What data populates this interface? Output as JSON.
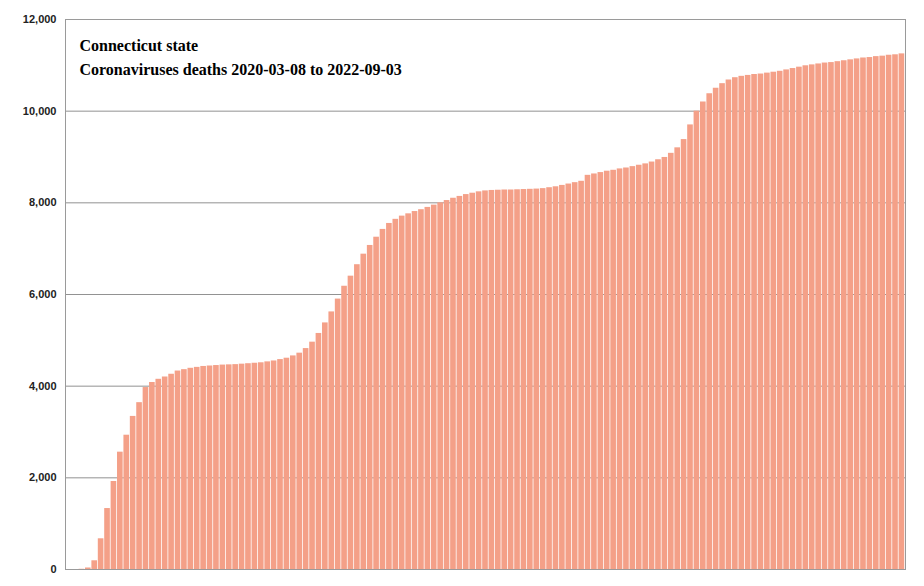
{
  "chart_data": {
    "type": "bar",
    "title": "Connecticut state",
    "subtitle": "Coronaviruses deaths 2020-03-08 to 2022-09-03",
    "categories": [
      null,
      null,
      null,
      null,
      null,
      null,
      null,
      null,
      null,
      null,
      null,
      null,
      null,
      null,
      null,
      null,
      null,
      null,
      null,
      null,
      null,
      null,
      null,
      null,
      null,
      null,
      null,
      null,
      null,
      null,
      null,
      null,
      null,
      null,
      null,
      null,
      null,
      null,
      null,
      null,
      null,
      null,
      null,
      null,
      null,
      null,
      null,
      null,
      null,
      null,
      null,
      null,
      null,
      null,
      null,
      null,
      null,
      null,
      null,
      null,
      null,
      null,
      null,
      null,
      null,
      null,
      null,
      null,
      null,
      null,
      null,
      null,
      null,
      null,
      null,
      null,
      null,
      null,
      null,
      null,
      null,
      null,
      null,
      null,
      null,
      null,
      null,
      null,
      null,
      null,
      null,
      null,
      null,
      null,
      null,
      null,
      null,
      null,
      null,
      null,
      null,
      null,
      null,
      null,
      null,
      null,
      null,
      null,
      null,
      null,
      null,
      null,
      null,
      null,
      null,
      null,
      null,
      null,
      null,
      null,
      null,
      null,
      null,
      null,
      null,
      null,
      null,
      null,
      null,
      null,
      null
    ],
    "values": [
      0,
      0,
      5,
      33,
      190,
      670,
      1330,
      1920,
      2560,
      2930,
      3340,
      3640,
      3970,
      4080,
      4150,
      4200,
      4260,
      4330,
      4360,
      4390,
      4410,
      4430,
      4440,
      4450,
      4460,
      4465,
      4470,
      4480,
      4490,
      4500,
      4510,
      4530,
      4550,
      4580,
      4610,
      4660,
      4720,
      4820,
      4960,
      5150,
      5380,
      5620,
      5900,
      6180,
      6400,
      6650,
      6880,
      7070,
      7250,
      7420,
      7550,
      7640,
      7710,
      7760,
      7810,
      7850,
      7900,
      7950,
      8000,
      8050,
      8100,
      8140,
      8180,
      8210,
      8240,
      8260,
      8270,
      8275,
      8280,
      8280,
      8285,
      8290,
      8295,
      8300,
      8310,
      8330,
      8350,
      8380,
      8410,
      8440,
      8470,
      8600,
      8630,
      8660,
      8690,
      8710,
      8740,
      8760,
      8790,
      8820,
      8850,
      8890,
      8940,
      8990,
      9080,
      9200,
      9380,
      9700,
      10000,
      10200,
      10380,
      10500,
      10600,
      10680,
      10730,
      10760,
      10780,
      10800,
      10810,
      10830,
      10850,
      10870,
      10900,
      10930,
      10960,
      10990,
      11010,
      11030,
      11050,
      11060,
      11080,
      11100,
      11120,
      11140,
      11160,
      11170,
      11190,
      11200,
      11220,
      11230,
      11250
    ],
    "color": "#f4a088",
    "ylim": [
      0,
      12000
    ],
    "yticks": [
      0,
      {
        "value": 2000,
        "label": "2,000"
      },
      {
        "value": 4000,
        "label": "4,000"
      },
      {
        "value": 6000,
        "label": "6,000"
      },
      {
        "value": 8000,
        "label": "8,000"
      },
      {
        "value": 10000,
        "label": "10,000"
      },
      {
        "value": 12000,
        "label": "12,000"
      }
    ],
    "grid": true,
    "tick_labels": "y"
  }
}
